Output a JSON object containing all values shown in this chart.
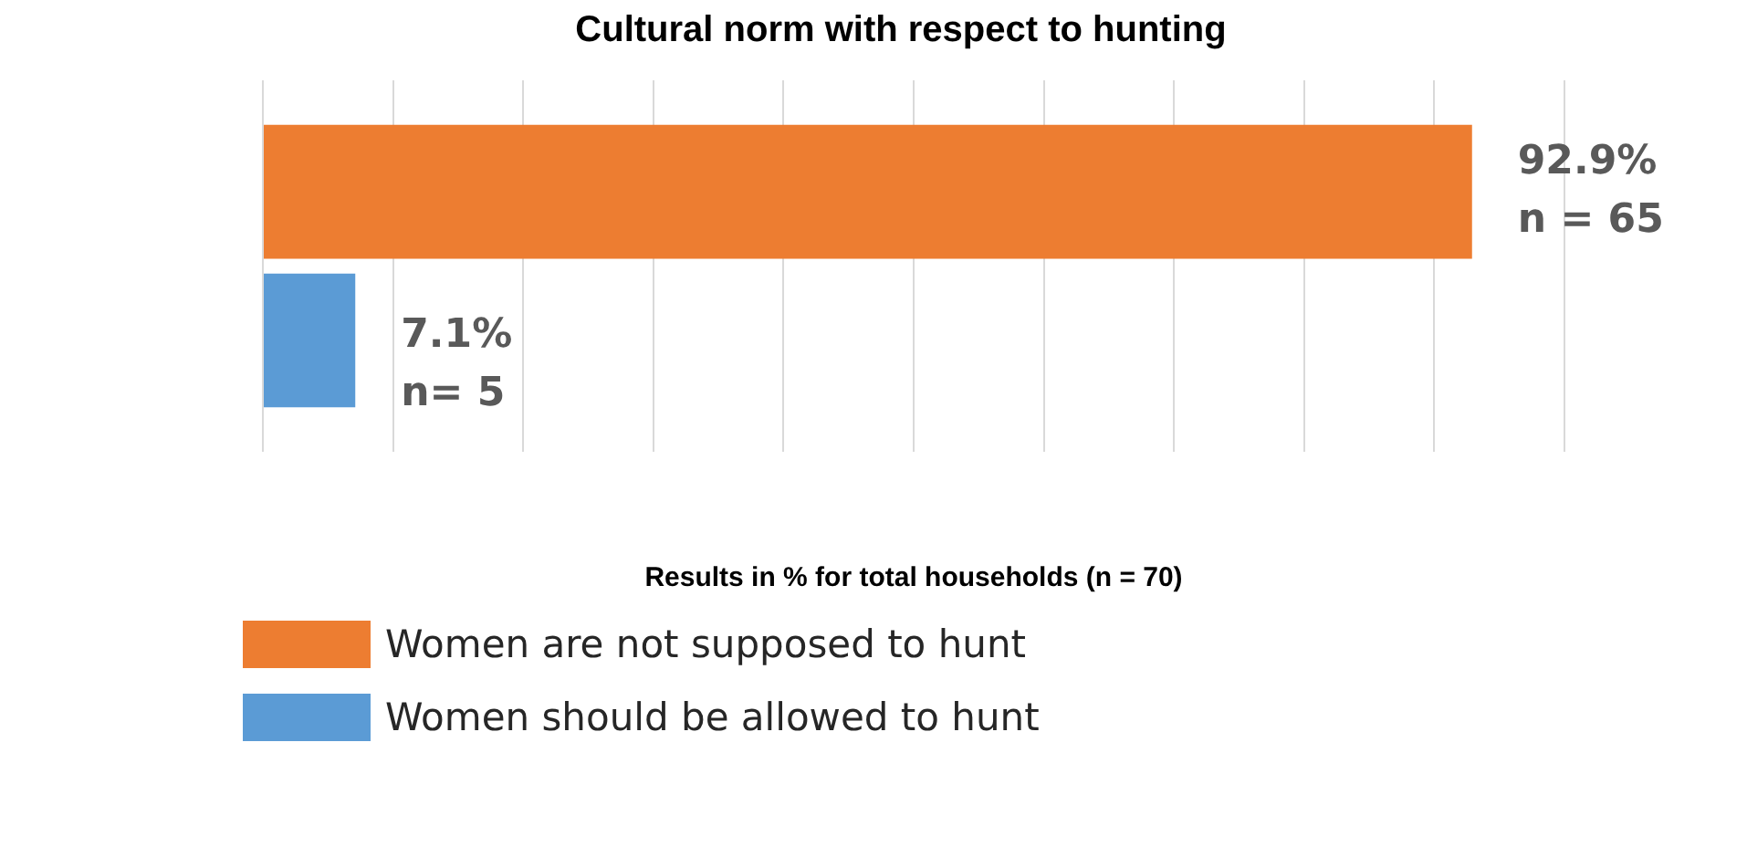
{
  "chart_data": {
    "type": "bar",
    "orientation": "horizontal",
    "title": "Cultural norm with respect to hunting",
    "xlabel": "Results in % for total households (n = 70)",
    "categories": [
      null
    ],
    "series": [
      {
        "name": "Women are not supposed to hunt",
        "color": "#ed7d31",
        "values": [
          92.9
        ],
        "value_labels": [
          "92.9%\nn = 65"
        ]
      },
      {
        "name": "Women should be allowed to hunt",
        "color": "#5b9bd5",
        "values": [
          7.1
        ],
        "value_labels": [
          "7.1%\nn= 5"
        ]
      }
    ],
    "xlim": [
      0,
      100
    ],
    "xticks": [
      {
        "value": 0,
        "label": null
      },
      {
        "value": 10,
        "label": null
      },
      {
        "value": 20,
        "label": null
      },
      {
        "value": 30,
        "label": null
      },
      {
        "value": 40,
        "label": null
      },
      {
        "value": 50,
        "label": null
      },
      {
        "value": 60,
        "label": null
      },
      {
        "value": 70,
        "label": null
      },
      {
        "value": 80,
        "label": null
      },
      {
        "value": 90,
        "label": null
      },
      {
        "value": 100,
        "label": null
      }
    ],
    "grid": "x",
    "legend": "bottom left"
  }
}
